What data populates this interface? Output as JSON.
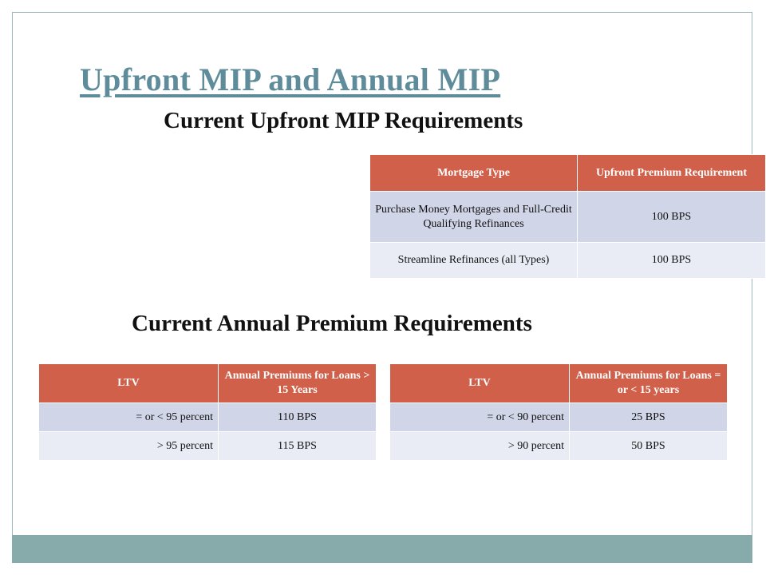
{
  "slide": {
    "title": "Upfront MIP and Annual MIP",
    "upfront_heading": "Current Upfront MIP Requirements",
    "annual_heading": "Current Annual Premium Requirements"
  },
  "upfront_table": {
    "headers": [
      "Mortgage Type",
      "Upfront Premium Requirement"
    ],
    "rows": [
      [
        "Purchase Money Mortgages and Full-Credit Qualifying Refinances",
        "100 BPS"
      ],
      [
        "Streamline Refinances (all Types)",
        "100 BPS"
      ]
    ]
  },
  "annual_table_over15": {
    "headers": [
      "LTV",
      "Annual Premiums for Loans > 15 Years"
    ],
    "rows": [
      [
        "= or < 95 percent",
        "110 BPS"
      ],
      [
        "> 95 percent",
        "115 BPS"
      ]
    ]
  },
  "annual_table_15orless": {
    "headers": [
      "LTV",
      "Annual Premiums for Loans = or < 15 years"
    ],
    "rows": [
      [
        "= or < 90 percent",
        "25 BPS"
      ],
      [
        "> 90 percent",
        "50 BPS"
      ]
    ]
  },
  "colors": {
    "title": "#5e8c9a",
    "header_fill": "#d0604a",
    "row_fill_dark": "#d1d5e8",
    "row_fill_light": "#e9ecf5",
    "footer_bar": "#87abab"
  }
}
